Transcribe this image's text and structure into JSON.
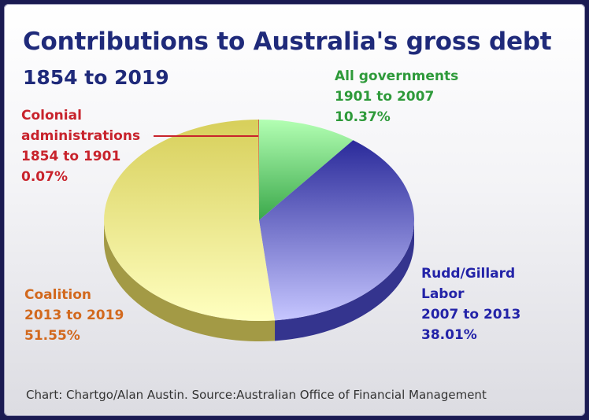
{
  "chart_data": {
    "type": "pie",
    "title": "Contributions to Australia's gross debt",
    "subtitle": "1854 to 2019",
    "source": "Chart: Chartgo/Alan Austin. Source:Australian Office of Financial Management",
    "slices": [
      {
        "label_lines": [
          "All governments",
          "1901 to 2007"
        ],
        "value": 10.37,
        "value_label": "10.37%",
        "color": "#2e9a3a",
        "fill_top": "#b3ffb3",
        "fill_bottom": "#3aa84a",
        "side": "#1f6e2a"
      },
      {
        "label_lines": [
          "Rudd/Gillard",
          "Labor",
          "2007 to 2013"
        ],
        "value": 38.01,
        "value_label": "38.01%",
        "color": "#2323a8",
        "fill_top": "#2a2a9a",
        "fill_bottom": "#c6c6ff",
        "side": "#34348e"
      },
      {
        "label_lines": [
          "Coalition",
          "2013 to 2019"
        ],
        "value": 51.55,
        "value_label": "51.55%",
        "color": "#d2691e",
        "fill_top": "#d7cf5a",
        "fill_bottom": "#ffffc0",
        "side": "#a39a45"
      },
      {
        "label_lines": [
          "Colonial",
          "administrations",
          "1854 to 1901"
        ],
        "value": 0.07,
        "value_label": "0.07%",
        "color": "#c8232c",
        "fill_top": "#c84b35",
        "fill_bottom": "#d85b3e",
        "side": "#8e2f20"
      }
    ]
  }
}
